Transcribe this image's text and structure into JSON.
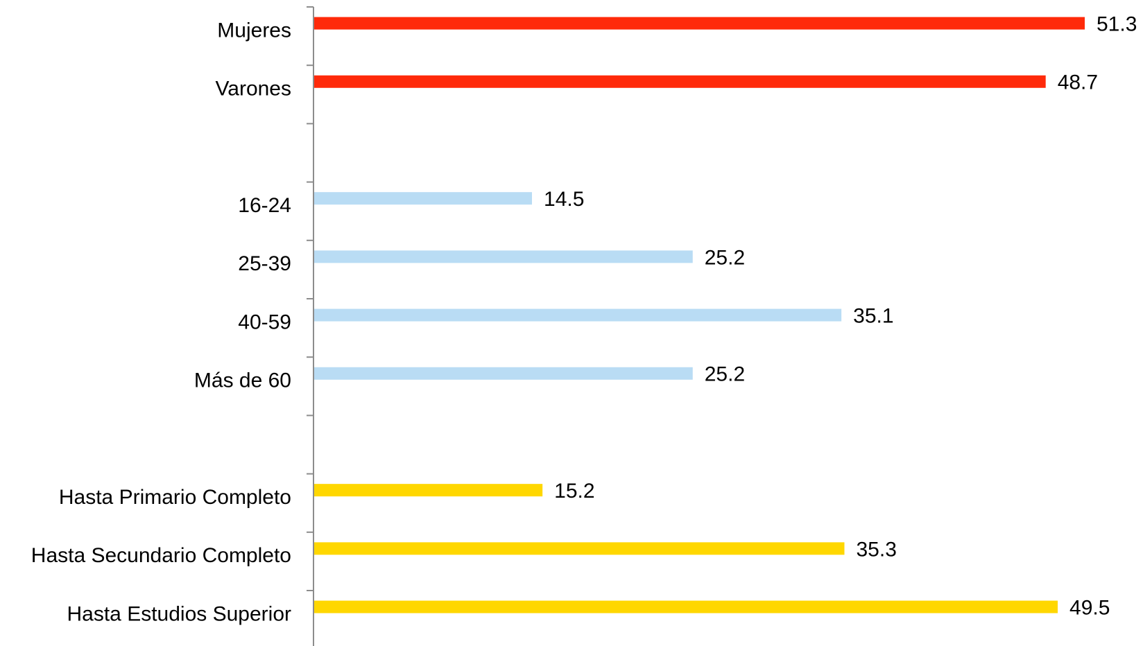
{
  "chart_data": {
    "type": "bar",
    "orientation": "horizontal",
    "categories": [
      "Mujeres",
      "Varones",
      "",
      "16-24",
      "25-39",
      "40-59",
      "Más de 60",
      "",
      "Hasta Primario Completo",
      "Hasta Secundario Completo",
      "Hasta Estudios Superior"
    ],
    "values": [
      51.3,
      48.7,
      null,
      14.5,
      25.2,
      35.1,
      25.2,
      null,
      15.2,
      35.3,
      49.5
    ],
    "value_labels": [
      "51.3",
      "48.7",
      "",
      "14.5",
      "25.2",
      "35.1",
      "25.2",
      "",
      "15.2",
      "35.3",
      "49.5"
    ],
    "groups": [
      {
        "color": "#ff2a0a",
        "indices": [
          0,
          1
        ]
      },
      {
        "color": "#b9dcf4",
        "indices": [
          3,
          4,
          5,
          6
        ]
      },
      {
        "color": "#ffd700",
        "indices": [
          8,
          9,
          10
        ]
      }
    ],
    "xlim": [
      0,
      51.3
    ],
    "grid": false,
    "legend": "none",
    "title": "",
    "xlabel": "",
    "ylabel": ""
  }
}
